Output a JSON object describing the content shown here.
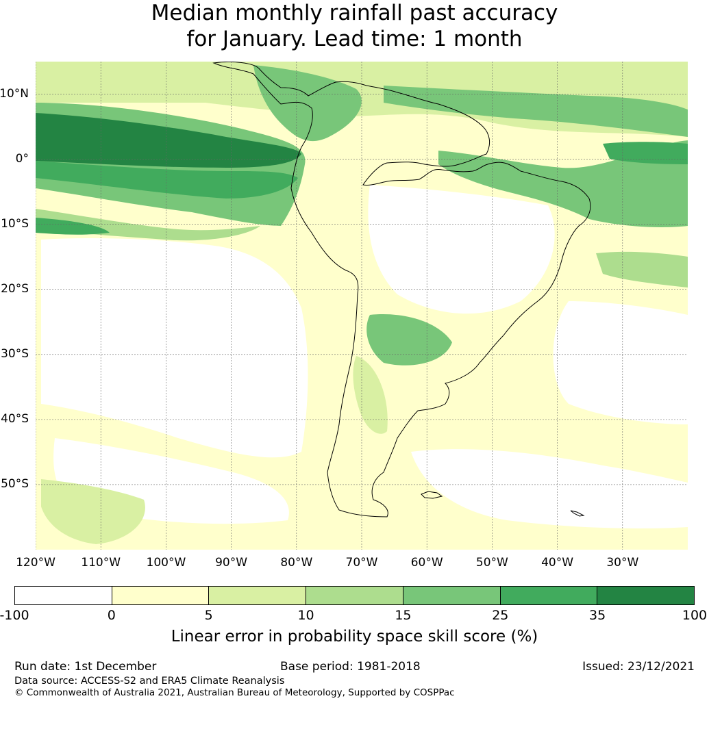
{
  "title": {
    "line1": "Median monthly rainfall past accuracy",
    "line2": "for January. Lead time: 1 month"
  },
  "map": {
    "lat_labels": [
      "10°N",
      "0°",
      "10°S",
      "20°S",
      "30°S",
      "40°S",
      "50°S"
    ],
    "lat_values": [
      10,
      0,
      -10,
      -20,
      -30,
      -40,
      -50
    ],
    "lon_labels": [
      "120°W",
      "110°W",
      "100°W",
      "90°W",
      "80°W",
      "70°W",
      "60°W",
      "50°W",
      "40°W",
      "30°W"
    ],
    "lon_values": [
      -120,
      -110,
      -100,
      -90,
      -80,
      -70,
      -60,
      -50,
      -40,
      -30
    ],
    "extent": {
      "lon_min": -120,
      "lon_max": -20,
      "lat_min": -60,
      "lat_max": 15
    },
    "coastline_color": "#000000",
    "grid_color": "#666666"
  },
  "colorbar": {
    "ticks": [
      "-100",
      "0",
      "5",
      "10",
      "15",
      "25",
      "35",
      "100"
    ],
    "colors": [
      "#ffffff",
      "#ffffcc",
      "#d9f0a3",
      "#addd8e",
      "#78c679",
      "#41ab5d",
      "#238443"
    ],
    "label": "Linear error in probability space skill score (%)"
  },
  "footer": {
    "run_date": "Run date: 1st December",
    "base_period": "Base period: 1981-2018",
    "issued": "Issued: 23/12/2021",
    "data_source": "Data source: ACCESS-S2 and ERA5 Climate Reanalysis",
    "copyright": "© Commonwealth of Australia 2021, Australian Bureau of Meteorology, Supported by COSPPac"
  }
}
